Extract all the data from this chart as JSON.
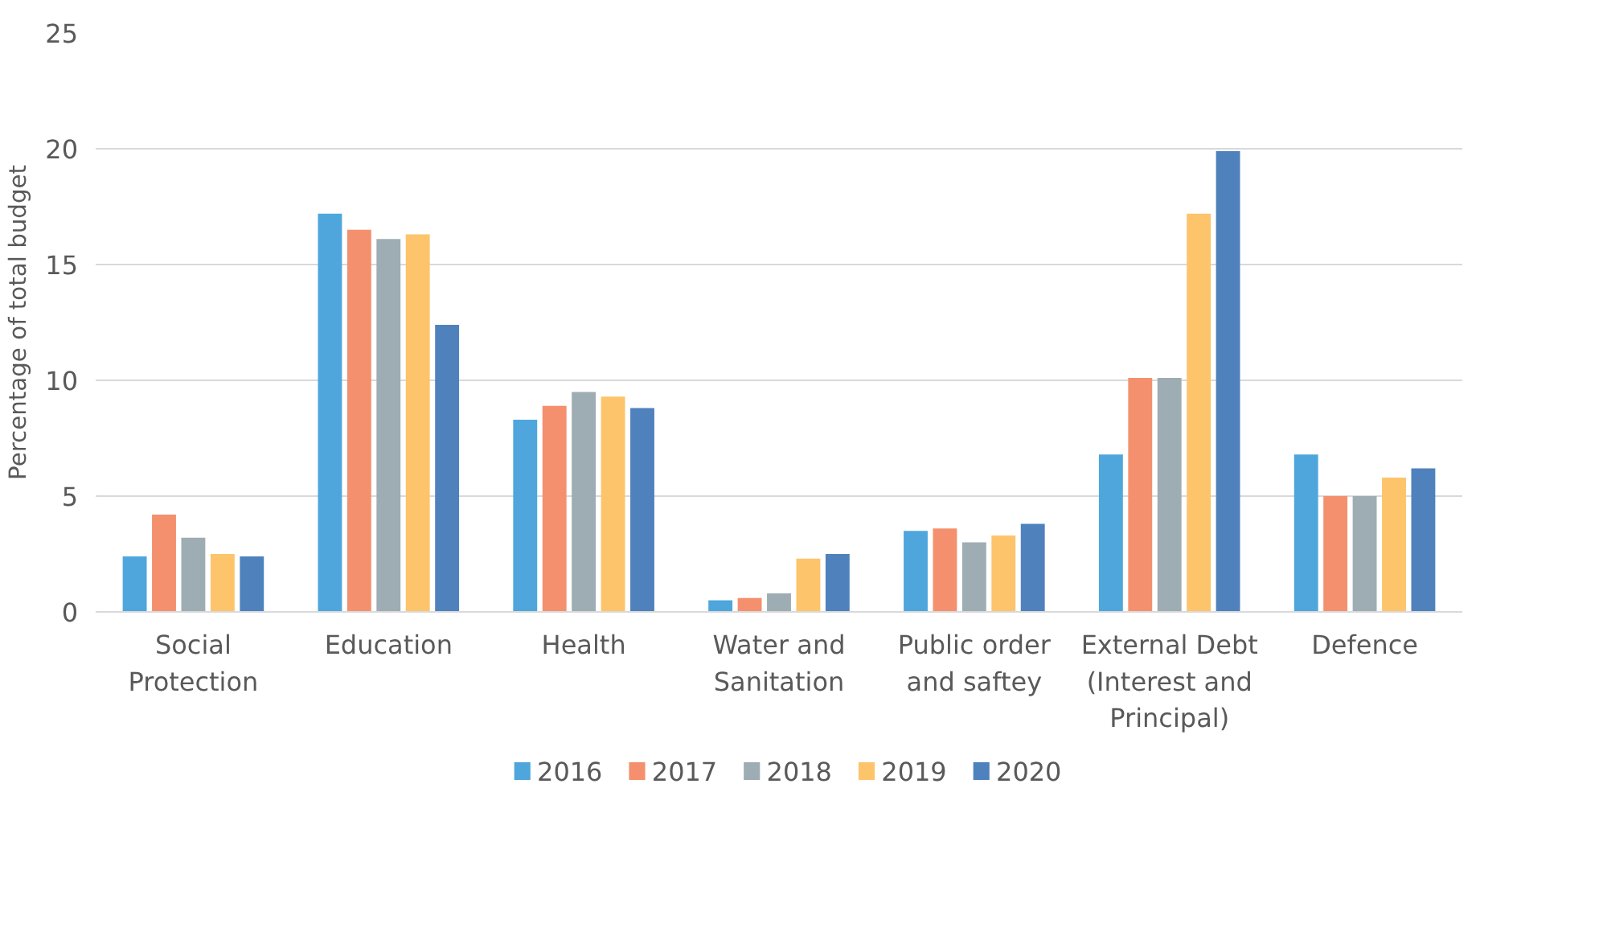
{
  "chart_data": {
    "type": "bar",
    "ylabel": "Percentage of total budget",
    "categories": [
      "Social Protection",
      "Education",
      "Health",
      "Water and Sanitation",
      "Public order and saftey",
      "External Debt (Interest and Principal)",
      "Defence"
    ],
    "series": [
      {
        "name": "2016",
        "color": "#4ea6dc",
        "values": [
          2.4,
          17.2,
          8.3,
          0.5,
          3.5,
          6.8,
          6.8
        ]
      },
      {
        "name": "2017",
        "color": "#f4906e",
        "values": [
          4.2,
          16.5,
          8.9,
          0.6,
          3.6,
          10.1,
          5.0
        ]
      },
      {
        "name": "2018",
        "color": "#9eacb3",
        "values": [
          3.2,
          16.1,
          9.5,
          0.8,
          3.0,
          10.1,
          5.0
        ]
      },
      {
        "name": "2019",
        "color": "#fdc46b",
        "values": [
          2.5,
          16.3,
          9.3,
          2.3,
          3.3,
          17.2,
          5.8
        ]
      },
      {
        "name": "2020",
        "color": "#4f81bd",
        "values": [
          2.4,
          12.4,
          8.8,
          2.5,
          3.8,
          19.9,
          6.2
        ]
      }
    ],
    "ylim": [
      0,
      25
    ],
    "yticks": [
      0,
      5,
      10,
      15,
      20,
      25
    ],
    "grid": "y",
    "legend": "bottom"
  }
}
